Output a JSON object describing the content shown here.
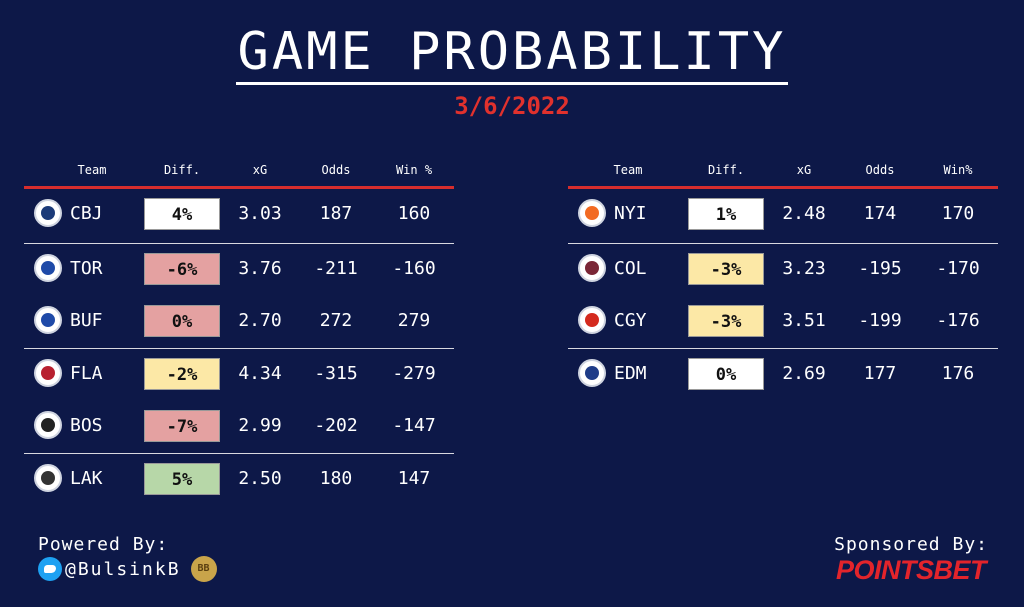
{
  "title": "GAME PROBABILITY",
  "date": "3/6/2022",
  "left": {
    "headers": [
      "Team",
      "Diff.",
      "xG",
      "Odds",
      "Win %"
    ],
    "rows": [
      {
        "team": "CBJ",
        "diff": "4%",
        "diff_color": "#ffffff",
        "xg": "3.03",
        "odds": "187",
        "win": "160",
        "logo": "blue-jackets-logo"
      },
      {
        "team": "TOR",
        "diff": "-6%",
        "diff_color": "#e4a1a1",
        "xg": "3.76",
        "odds": "-211",
        "win": "-160",
        "logo": "maple-leafs-logo"
      },
      {
        "team": "BUF",
        "diff": "0%",
        "diff_color": "#e4a1a1",
        "xg": "2.70",
        "odds": "272",
        "win": "279",
        "logo": "sabres-logo"
      },
      {
        "team": "FLA",
        "diff": "-2%",
        "diff_color": "#fce8a6",
        "xg": "4.34",
        "odds": "-315",
        "win": "-279",
        "logo": "panthers-logo"
      },
      {
        "team": "BOS",
        "diff": "-7%",
        "diff_color": "#e4a1a1",
        "xg": "2.99",
        "odds": "-202",
        "win": "-147",
        "logo": "bruins-logo"
      },
      {
        "team": "LAK",
        "diff": "5%",
        "diff_color": "#b7d7a8",
        "xg": "2.50",
        "odds": "180",
        "win": "147",
        "logo": "kings-logo"
      }
    ]
  },
  "right": {
    "headers": [
      "Team",
      "Diff.",
      "xG",
      "Odds",
      "Win%"
    ],
    "rows": [
      {
        "team": "NYI",
        "diff": "1%",
        "diff_color": "#ffffff",
        "xg": "2.48",
        "odds": "174",
        "win": "170",
        "logo": "islanders-logo"
      },
      {
        "team": "COL",
        "diff": "-3%",
        "diff_color": "#fce8a6",
        "xg": "3.23",
        "odds": "-195",
        "win": "-170",
        "logo": "avalanche-logo"
      },
      {
        "team": "CGY",
        "diff": "-3%",
        "diff_color": "#fce8a6",
        "xg": "3.51",
        "odds": "-199",
        "win": "-176",
        "logo": "flames-logo"
      },
      {
        "team": "EDM",
        "diff": "0%",
        "diff_color": "#ffffff",
        "xg": "2.69",
        "odds": "177",
        "win": "176",
        "logo": "oilers-logo"
      }
    ]
  },
  "footer": {
    "powered_by": "Powered By:",
    "handle": "@BulsinkB",
    "badge": "BB",
    "sponsored_by": "Sponsored By:",
    "sponsor": "POINTSBET"
  },
  "colors": {
    "background": "#0d1848",
    "accent_red": "#e0312d"
  }
}
